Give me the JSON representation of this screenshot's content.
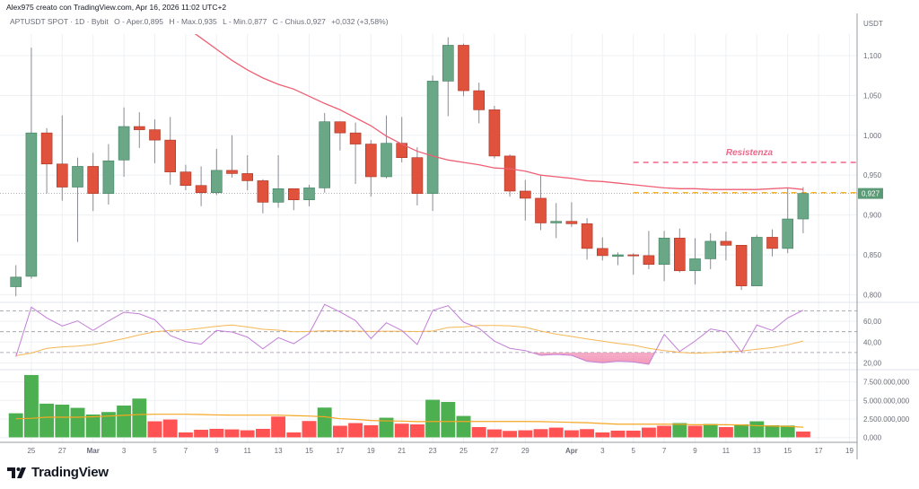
{
  "header": {
    "credit": "Alex975 creato con TradingView.com, Apr 16, 2026 11:02 UTC+2",
    "symbol": "APTUSDT SPOT · 1D · Bybit",
    "open": "O - Aper.0,895",
    "high": "H - Max.0,935",
    "low": "L - Min.0,877",
    "close": "C - Chius.0,927",
    "change": "+0,032 (+3,58%)"
  },
  "footer": {
    "logo": "TradingView"
  },
  "chart_data": {
    "type": "candlestick",
    "currency": "USDT",
    "year": 2026,
    "candle_fields": [
      "date",
      "open",
      "high",
      "low",
      "close"
    ],
    "candles": [
      [
        "02-24",
        0.81,
        0.837,
        0.798,
        0.822
      ],
      [
        "02-25",
        0.823,
        1.11,
        0.82,
        1.003
      ],
      [
        "02-26",
        1.003,
        1.009,
        0.927,
        0.964
      ],
      [
        "02-27",
        0.964,
        1.025,
        0.918,
        0.935
      ],
      [
        "02-28",
        0.935,
        0.972,
        0.866,
        0.961
      ],
      [
        "03-01",
        0.961,
        0.978,
        0.905,
        0.927
      ],
      [
        "03-02",
        0.927,
        0.989,
        0.913,
        0.968
      ],
      [
        "03-03",
        0.969,
        1.035,
        0.948,
        1.011
      ],
      [
        "03-04",
        1.011,
        1.029,
        0.984,
        1.007
      ],
      [
        "03-05",
        1.007,
        1.02,
        0.965,
        0.994
      ],
      [
        "03-06",
        0.994,
        1.023,
        0.938,
        0.954
      ],
      [
        "03-07",
        0.954,
        0.963,
        0.931,
        0.937
      ],
      [
        "03-08",
        0.937,
        0.961,
        0.911,
        0.928
      ],
      [
        "03-09",
        0.928,
        0.983,
        0.925,
        0.956
      ],
      [
        "03-10",
        0.956,
        1.0,
        0.947,
        0.952
      ],
      [
        "03-11",
        0.952,
        0.975,
        0.931,
        0.943
      ],
      [
        "03-12",
        0.943,
        0.945,
        0.902,
        0.916
      ],
      [
        "03-13",
        0.916,
        0.975,
        0.909,
        0.933
      ],
      [
        "03-14",
        0.933,
        0.933,
        0.906,
        0.919
      ],
      [
        "03-15",
        0.919,
        0.938,
        0.911,
        0.934
      ],
      [
        "03-16",
        0.934,
        1.028,
        0.928,
        1.017
      ],
      [
        "03-17",
        1.017,
        1.017,
        0.981,
        1.003
      ],
      [
        "03-18",
        1.003,
        1.016,
        0.939,
        0.989
      ],
      [
        "03-19",
        0.989,
        0.994,
        0.923,
        0.948
      ],
      [
        "03-20",
        0.948,
        1.025,
        0.946,
        0.99
      ],
      [
        "03-21",
        0.99,
        1.023,
        0.966,
        0.972
      ],
      [
        "03-22",
        0.972,
        0.985,
        0.912,
        0.927
      ],
      [
        "03-23",
        0.927,
        1.075,
        0.905,
        1.068
      ],
      [
        "03-24",
        1.068,
        1.123,
        1.024,
        1.113
      ],
      [
        "03-25",
        1.113,
        1.115,
        1.049,
        1.056
      ],
      [
        "03-26",
        1.056,
        1.066,
        1.015,
        1.032
      ],
      [
        "03-27",
        1.032,
        1.037,
        0.971,
        0.974
      ],
      [
        "03-28",
        0.974,
        0.976,
        0.923,
        0.93
      ],
      [
        "03-29",
        0.93,
        0.944,
        0.893,
        0.921
      ],
      [
        "03-30",
        0.921,
        0.95,
        0.881,
        0.89
      ],
      [
        "03-31",
        0.89,
        0.915,
        0.871,
        0.892
      ],
      [
        "04-01",
        0.892,
        0.916,
        0.885,
        0.889
      ],
      [
        "04-02",
        0.889,
        0.896,
        0.844,
        0.858
      ],
      [
        "04-03",
        0.858,
        0.872,
        0.843,
        0.849
      ],
      [
        "04-04",
        0.848,
        0.853,
        0.837,
        0.85
      ],
      [
        "04-05",
        0.85,
        0.852,
        0.825,
        0.849
      ],
      [
        "04-06",
        0.849,
        0.88,
        0.832,
        0.838
      ],
      [
        "04-07",
        0.838,
        0.88,
        0.817,
        0.871
      ],
      [
        "04-08",
        0.871,
        0.883,
        0.828,
        0.83
      ],
      [
        "04-09",
        0.83,
        0.871,
        0.813,
        0.845
      ],
      [
        "04-10",
        0.845,
        0.877,
        0.832,
        0.867
      ],
      [
        "04-11",
        0.867,
        0.879,
        0.843,
        0.862
      ],
      [
        "04-12",
        0.862,
        0.862,
        0.806,
        0.811
      ],
      [
        "04-13",
        0.811,
        0.875,
        0.811,
        0.872
      ],
      [
        "04-14",
        0.872,
        0.882,
        0.848,
        0.858
      ],
      [
        "04-15",
        0.858,
        0.934,
        0.852,
        0.895
      ],
      [
        "04-16",
        0.895,
        0.935,
        0.877,
        0.927
      ]
    ],
    "moving_average": [
      null,
      null,
      null,
      null,
      null,
      null,
      null,
      null,
      null,
      null,
      null,
      1.136,
      1.122,
      1.108,
      1.094,
      1.082,
      1.072,
      1.064,
      1.058,
      1.049,
      1.04,
      1.032,
      1.022,
      1.012,
      0.999,
      0.989,
      0.98,
      0.974,
      0.969,
      0.966,
      0.963,
      0.959,
      0.958,
      0.955,
      0.95,
      0.948,
      0.946,
      0.943,
      0.942,
      0.94,
      0.938,
      0.936,
      0.934,
      0.933,
      0.933,
      0.932,
      0.932,
      0.932,
      0.932,
      0.933,
      0.934,
      0.932
    ],
    "last_price": "0,927",
    "last_price_value": 0.927,
    "horizontal_lines": [
      {
        "label": "Resistenza",
        "value": 0.966,
        "from": "04-05",
        "color": "#f0668a"
      },
      {
        "label": "",
        "value": 0.928,
        "from": "04-05",
        "color": "#f5b32a"
      }
    ],
    "price_axis": {
      "range": [
        0.78,
        1.13
      ],
      "ticks": [
        {
          "v": 1.1,
          "label": "1,100"
        },
        {
          "v": 1.05,
          "label": "1,050"
        },
        {
          "v": 1.0,
          "label": "1,000"
        },
        {
          "v": 0.95,
          "label": "0,950"
        },
        {
          "v": 0.9,
          "label": "0,900"
        },
        {
          "v": 0.85,
          "label": "0,850"
        },
        {
          "v": 0.8,
          "label": "0,800"
        }
      ]
    },
    "rsi": {
      "values": [
        26,
        73.6,
        63.3,
        55.5,
        60.4,
        51.2,
        60.4,
        68.7,
        67.2,
        61.5,
        46.3,
        40.5,
        38,
        51.2,
        49.7,
        44.8,
        33.6,
        44.3,
        38.5,
        48.3,
        76.2,
        69,
        60.7,
        43.4,
        58.6,
        51.2,
        37.7,
        70.4,
        75,
        59.2,
        53.4,
        41,
        34,
        31.9,
        27.3,
        28.2,
        27.3,
        21.6,
        20.2,
        21.6,
        21,
        18.7,
        47.4,
        31,
        41,
        52.6,
        50,
        30.5,
        56.4,
        51.2,
        63.3,
        70.7
      ],
      "ma": [
        27,
        29.5,
        34,
        35.4,
        36.2,
        37.7,
        40.3,
        43.4,
        46.9,
        50,
        51.2,
        51.7,
        53.4,
        55.2,
        56.4,
        54.6,
        52.3,
        51.5,
        50,
        50.3,
        50.9,
        50.8,
        50.6,
        50.3,
        50.5,
        50.4,
        50.2,
        50.6,
        54,
        54.6,
        56,
        56,
        55.7,
        54.3,
        50.6,
        47.7,
        45.4,
        43.1,
        40.9,
        38.8,
        37.1,
        34,
        31.9,
        30.2,
        29.3,
        29.9,
        30.8,
        31.4,
        33.1,
        34.8,
        37.4,
        41
      ],
      "bands": [
        70,
        50,
        30
      ],
      "ticks": [
        {
          "v": 60,
          "label": "60,00"
        },
        {
          "v": 40,
          "label": "40,00"
        },
        {
          "v": 20,
          "label": "20,00"
        }
      ]
    },
    "volume": {
      "values": [
        3300000000,
        8460000000,
        4600000000,
        4470000000,
        4030000000,
        3140000000,
        3470000000,
        4350000000,
        5280000000,
        2220000000,
        2460000000,
        730000000,
        1090000000,
        1210000000,
        1130000000,
        1010000000,
        1210000000,
        2860000000,
        730000000,
        2260000000,
        4070000000,
        1620000000,
        1980000000,
        1690000000,
        2700000000,
        1900000000,
        1810000000,
        5120000000,
        4830000000,
        2940000000,
        1450000000,
        1130000000,
        930000000,
        1010000000,
        1170000000,
        1370000000,
        1010000000,
        1170000000,
        730000000,
        970000000,
        970000000,
        1370000000,
        1620000000,
        1980000000,
        1620000000,
        1860000000,
        1450000000,
        1810000000,
        2220000000,
        1690000000,
        1650000000,
        850000000
      ],
      "up": [
        1,
        1,
        1,
        1,
        1,
        1,
        1,
        1,
        1,
        0,
        0,
        0,
        0,
        0,
        0,
        0,
        0,
        0,
        0,
        0,
        1,
        0,
        0,
        0,
        1,
        0,
        0,
        1,
        1,
        1,
        0,
        0,
        0,
        0,
        0,
        0,
        0,
        0,
        0,
        0,
        0,
        0,
        0,
        1,
        0,
        1,
        0,
        1,
        1,
        1,
        1,
        0
      ],
      "ma": [
        2540000000,
        2600000000,
        2740000000,
        2740000000,
        2740000000,
        2800000000,
        2900000000,
        3000000000,
        3100000000,
        3140000000,
        3140000000,
        3140000000,
        3100000000,
        3050000000,
        3020000000,
        3020000000,
        3020000000,
        3020000000,
        2950000000,
        2900000000,
        2800000000,
        2540000000,
        2450000000,
        2300000000,
        2250000000,
        2220000000,
        2150000000,
        2170000000,
        2170000000,
        2170000000,
        2170000000,
        2170000000,
        2170000000,
        2170000000,
        2150000000,
        2100000000,
        2050000000,
        2000000000,
        1900000000,
        1810000000,
        1810000000,
        1810000000,
        1810000000,
        1780000000,
        1730000000,
        1730000000,
        1730000000,
        1700000000,
        1600000000,
        1550000000,
        1500000000,
        1400000000
      ],
      "ticks": [
        {
          "v": 7500000000,
          "label": "7.500.000,000"
        },
        {
          "v": 5000000000,
          "label": "5.000.000,000"
        },
        {
          "v": 2500000000,
          "label": "2.500.000,000"
        },
        {
          "v": 0,
          "label": "0,000"
        }
      ]
    },
    "x_ticks": [
      {
        "label": "25",
        "date": "02-25"
      },
      {
        "label": "27",
        "date": "02-27"
      },
      {
        "label": "Mar",
        "date": "03-01"
      },
      {
        "label": "3",
        "date": "03-03"
      },
      {
        "label": "5",
        "date": "03-05"
      },
      {
        "label": "7",
        "date": "03-07"
      },
      {
        "label": "9",
        "date": "03-09"
      },
      {
        "label": "11",
        "date": "03-11"
      },
      {
        "label": "13",
        "date": "03-13"
      },
      {
        "label": "15",
        "date": "03-15"
      },
      {
        "label": "17",
        "date": "03-17"
      },
      {
        "label": "19",
        "date": "03-19"
      },
      {
        "label": "21",
        "date": "03-21"
      },
      {
        "label": "23",
        "date": "03-23"
      },
      {
        "label": "25",
        "date": "03-25"
      },
      {
        "label": "27",
        "date": "03-27"
      },
      {
        "label": "29",
        "date": "03-29"
      },
      {
        "label": "Apr",
        "date": "04-01"
      },
      {
        "label": "3",
        "date": "04-03"
      },
      {
        "label": "5",
        "date": "04-05"
      },
      {
        "label": "7",
        "date": "04-07"
      },
      {
        "label": "9",
        "date": "04-09"
      },
      {
        "label": "11",
        "date": "04-11"
      },
      {
        "label": "13",
        "date": "04-13"
      },
      {
        "label": "15",
        "date": "04-15"
      },
      {
        "label": "17",
        "date": "04-17"
      },
      {
        "label": "19",
        "date": "04-19"
      }
    ],
    "colors": {
      "up": "#6aa787",
      "up_border": "#3f7f5f",
      "down": "#e0523c",
      "down_border": "#a83325",
      "vol_up": "#4caf50",
      "vol_down": "#ff5252",
      "ma": "#ef5f73",
      "rsi": "#c27fd6",
      "rsi_ma": "#f5b754",
      "grid": "#eef0f3"
    }
  }
}
